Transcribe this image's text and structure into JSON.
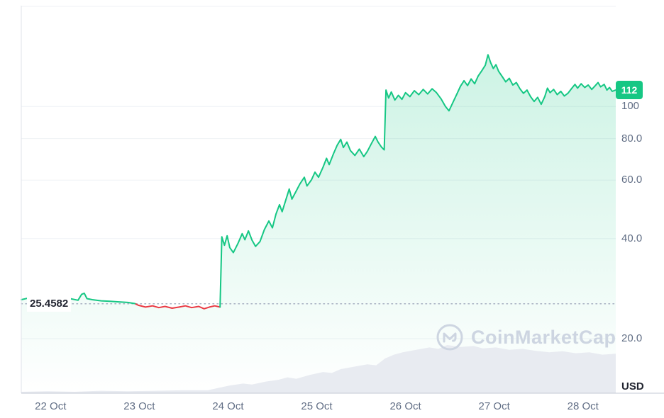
{
  "watermark": {
    "text": "CoinMarketCap",
    "logo": "coinmarketcap-logo-icon"
  },
  "chart_data": {
    "type": "line",
    "scale": "log",
    "title": "",
    "xlabel": "",
    "ylabel": "",
    "unit_label": "USD",
    "last_price_label": "112",
    "last_price_value": 112,
    "open_price_label": "25.4582",
    "open_price_value": 25.4582,
    "ylim": [
      18,
      210
    ],
    "grid": true,
    "legend_position": "none",
    "yticks": [
      {
        "value": 200,
        "label": ""
      },
      {
        "value": 100,
        "label": "100"
      },
      {
        "value": 80,
        "label": "80.0"
      },
      {
        "value": 60,
        "label": "60.0"
      },
      {
        "value": 40,
        "label": "40.0"
      },
      {
        "value": 20,
        "label": "20.0"
      }
    ],
    "xticks": [
      {
        "t": 0.33,
        "label": "22 Oct"
      },
      {
        "t": 1.33,
        "label": "23 Oct"
      },
      {
        "t": 2.33,
        "label": "24 Oct"
      },
      {
        "t": 3.33,
        "label": "25 Oct"
      },
      {
        "t": 4.33,
        "label": "26 Oct"
      },
      {
        "t": 5.33,
        "label": "27 Oct"
      },
      {
        "t": 6.33,
        "label": "28 Oct"
      }
    ],
    "red_segment": {
      "start": 1.28,
      "end": 2.24
    },
    "series": [
      {
        "name": "price",
        "points": [
          [
            0.0,
            26.2
          ],
          [
            0.08,
            26.5
          ],
          [
            0.15,
            26.1
          ],
          [
            0.25,
            26.3
          ],
          [
            0.35,
            26.0
          ],
          [
            0.45,
            26.2
          ],
          [
            0.55,
            26.4
          ],
          [
            0.64,
            26.1
          ],
          [
            0.68,
            27.2
          ],
          [
            0.71,
            27.4
          ],
          [
            0.74,
            26.4
          ],
          [
            0.8,
            26.2
          ],
          [
            0.9,
            26.0
          ],
          [
            1.0,
            25.9
          ],
          [
            1.1,
            25.8
          ],
          [
            1.2,
            25.7
          ],
          [
            1.28,
            25.5
          ],
          [
            1.32,
            25.2
          ],
          [
            1.4,
            24.9
          ],
          [
            1.48,
            25.1
          ],
          [
            1.55,
            24.8
          ],
          [
            1.62,
            25.0
          ],
          [
            1.7,
            24.7
          ],
          [
            1.78,
            24.9
          ],
          [
            1.85,
            25.1
          ],
          [
            1.92,
            24.8
          ],
          [
            2.0,
            25.0
          ],
          [
            2.06,
            24.6
          ],
          [
            2.12,
            24.9
          ],
          [
            2.18,
            25.1
          ],
          [
            2.24,
            24.9
          ],
          [
            2.26,
            40.5
          ],
          [
            2.29,
            38.2
          ],
          [
            2.32,
            40.8
          ],
          [
            2.35,
            37.6
          ],
          [
            2.39,
            36.3
          ],
          [
            2.44,
            38.6
          ],
          [
            2.49,
            41.4
          ],
          [
            2.52,
            39.7
          ],
          [
            2.56,
            42.2
          ],
          [
            2.6,
            39.6
          ],
          [
            2.64,
            37.9
          ],
          [
            2.69,
            39.2
          ],
          [
            2.74,
            42.6
          ],
          [
            2.79,
            45.2
          ],
          [
            2.83,
            43.1
          ],
          [
            2.87,
            47.4
          ],
          [
            2.91,
            50.6
          ],
          [
            2.94,
            48.2
          ],
          [
            2.99,
            53.2
          ],
          [
            3.02,
            56.4
          ],
          [
            3.05,
            52.6
          ],
          [
            3.09,
            55.1
          ],
          [
            3.14,
            58.4
          ],
          [
            3.19,
            61.2
          ],
          [
            3.22,
            57.6
          ],
          [
            3.27,
            60.1
          ],
          [
            3.31,
            63.4
          ],
          [
            3.35,
            61.2
          ],
          [
            3.4,
            65.6
          ],
          [
            3.44,
            69.8
          ],
          [
            3.47,
            66.8
          ],
          [
            3.52,
            72.2
          ],
          [
            3.56,
            76.4
          ],
          [
            3.6,
            79.6
          ],
          [
            3.63,
            75.2
          ],
          [
            3.67,
            78.1
          ],
          [
            3.71,
            73.6
          ],
          [
            3.76,
            71.2
          ],
          [
            3.81,
            74.4
          ],
          [
            3.86,
            70.6
          ],
          [
            3.9,
            73.2
          ],
          [
            3.95,
            77.6
          ],
          [
            3.99,
            81.2
          ],
          [
            4.02,
            78.2
          ],
          [
            4.06,
            75.4
          ],
          [
            4.09,
            74.0
          ],
          [
            4.11,
            112.0
          ],
          [
            4.14,
            106.0
          ],
          [
            4.17,
            110.5
          ],
          [
            4.21,
            104.5
          ],
          [
            4.25,
            108.0
          ],
          [
            4.29,
            105.0
          ],
          [
            4.33,
            110.0
          ],
          [
            4.38,
            107.0
          ],
          [
            4.43,
            111.5
          ],
          [
            4.48,
            108.5
          ],
          [
            4.53,
            112.5
          ],
          [
            4.58,
            109.0
          ],
          [
            4.63,
            113.0
          ],
          [
            4.68,
            110.0
          ],
          [
            4.73,
            105.5
          ],
          [
            4.78,
            100.0
          ],
          [
            4.82,
            97.0
          ],
          [
            4.87,
            103.5
          ],
          [
            4.91,
            109.0
          ],
          [
            4.95,
            115.0
          ],
          [
            4.99,
            119.5
          ],
          [
            5.03,
            115.5
          ],
          [
            5.07,
            121.0
          ],
          [
            5.11,
            117.0
          ],
          [
            5.15,
            123.5
          ],
          [
            5.19,
            128.0
          ],
          [
            5.23,
            133.0
          ],
          [
            5.26,
            143.0
          ],
          [
            5.29,
            135.5
          ],
          [
            5.32,
            130.0
          ],
          [
            5.35,
            133.5
          ],
          [
            5.38,
            127.5
          ],
          [
            5.42,
            123.0
          ],
          [
            5.46,
            118.5
          ],
          [
            5.5,
            121.5
          ],
          [
            5.54,
            116.0
          ],
          [
            5.58,
            118.0
          ],
          [
            5.62,
            113.0
          ],
          [
            5.66,
            109.5
          ],
          [
            5.7,
            112.0
          ],
          [
            5.74,
            107.0
          ],
          [
            5.78,
            103.5
          ],
          [
            5.82,
            106.5
          ],
          [
            5.86,
            101.5
          ],
          [
            5.9,
            107.0
          ],
          [
            5.93,
            113.5
          ],
          [
            5.96,
            110.0
          ],
          [
            6.0,
            112.5
          ],
          [
            6.04,
            108.5
          ],
          [
            6.08,
            111.0
          ],
          [
            6.12,
            107.5
          ],
          [
            6.16,
            109.5
          ],
          [
            6.2,
            113.0
          ],
          [
            6.24,
            116.5
          ],
          [
            6.27,
            113.5
          ],
          [
            6.31,
            117.0
          ],
          [
            6.35,
            114.0
          ],
          [
            6.39,
            116.0
          ],
          [
            6.43,
            112.5
          ],
          [
            6.47,
            115.5
          ],
          [
            6.5,
            118.0
          ],
          [
            6.53,
            114.5
          ],
          [
            6.57,
            116.5
          ],
          [
            6.6,
            112.0
          ],
          [
            6.63,
            114.0
          ],
          [
            6.66,
            111.0
          ],
          [
            6.7,
            112.0
          ]
        ]
      }
    ],
    "volume": [
      [
        0.0,
        0.03
      ],
      [
        0.3,
        0.04
      ],
      [
        0.6,
        0.03
      ],
      [
        0.9,
        0.05
      ],
      [
        1.2,
        0.04
      ],
      [
        1.5,
        0.05
      ],
      [
        1.8,
        0.06
      ],
      [
        2.1,
        0.06
      ],
      [
        2.25,
        0.12
      ],
      [
        2.35,
        0.16
      ],
      [
        2.5,
        0.2
      ],
      [
        2.6,
        0.18
      ],
      [
        2.75,
        0.24
      ],
      [
        2.9,
        0.28
      ],
      [
        3.0,
        0.33
      ],
      [
        3.1,
        0.3
      ],
      [
        3.25,
        0.38
      ],
      [
        3.4,
        0.44
      ],
      [
        3.5,
        0.42
      ],
      [
        3.6,
        0.5
      ],
      [
        3.75,
        0.55
      ],
      [
        3.9,
        0.6
      ],
      [
        4.0,
        0.58
      ],
      [
        4.1,
        0.72
      ],
      [
        4.2,
        0.8
      ],
      [
        4.3,
        0.85
      ],
      [
        4.45,
        0.9
      ],
      [
        4.6,
        0.95
      ],
      [
        4.7,
        0.92
      ],
      [
        4.8,
        1.0
      ],
      [
        4.95,
        0.96
      ],
      [
        5.1,
        0.98
      ],
      [
        5.2,
        0.93
      ],
      [
        5.35,
        0.95
      ],
      [
        5.5,
        0.9
      ],
      [
        5.65,
        0.92
      ],
      [
        5.8,
        0.88
      ],
      [
        5.95,
        0.85
      ],
      [
        6.1,
        0.87
      ],
      [
        6.25,
        0.83
      ],
      [
        6.4,
        0.85
      ],
      [
        6.55,
        0.8
      ],
      [
        6.7,
        0.82
      ]
    ],
    "colors": {
      "up": "#16c784",
      "down": "#ea3943",
      "grid": "#eff2f5",
      "axis_left": "#dfe3ea",
      "axis_bottom": "#c3cad4",
      "ref_line": "#a8b1c2",
      "tick_label": "#616e85",
      "dark_label": "#222531",
      "volume_fill": "#e8ebf1",
      "watermark": "#cdd5e1",
      "badge_text": "#ffffff"
    }
  }
}
